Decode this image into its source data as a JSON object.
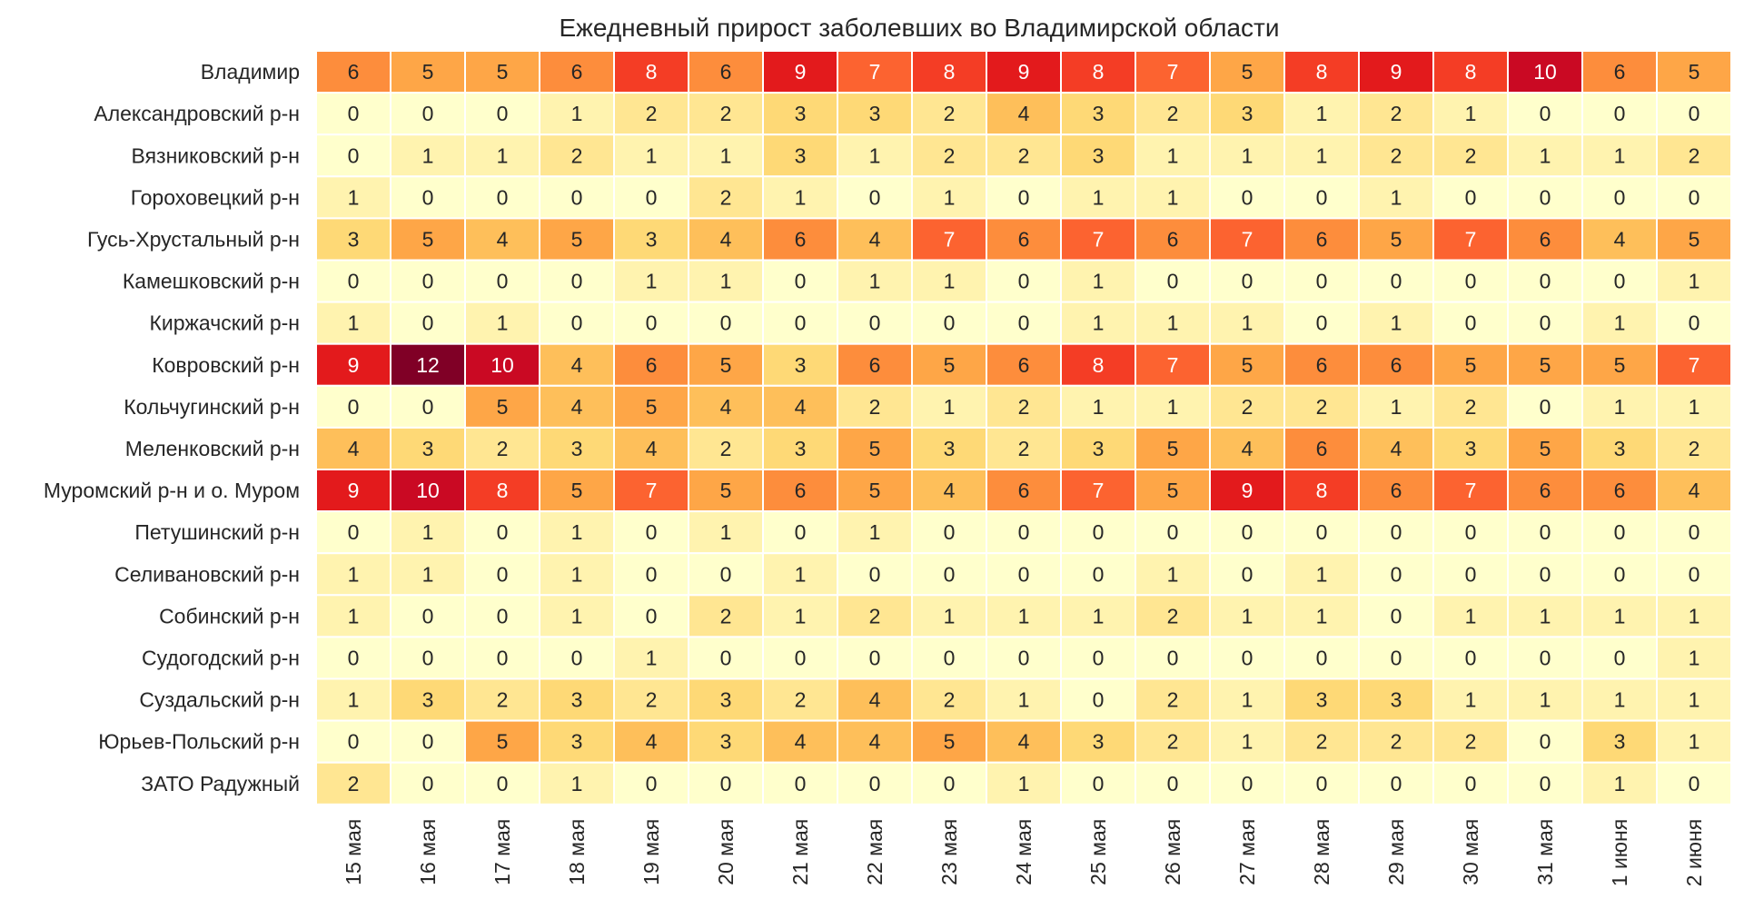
{
  "chart_data": {
    "type": "heatmap",
    "title": "Ежедневный прирост заболевших во Владимирской области",
    "xlabel": "",
    "ylabel": "",
    "columns": [
      "15 мая",
      "16 мая",
      "17 мая",
      "18 мая",
      "19 мая",
      "20 мая",
      "21 мая",
      "22 мая",
      "23 мая",
      "24 мая",
      "25 мая",
      "26 мая",
      "27 мая",
      "28 мая",
      "29 мая",
      "30 мая",
      "31 мая",
      "1 июня",
      "2 июня"
    ],
    "rows": [
      "Владимир",
      "Александровский р-н",
      "Вязниковский р-н",
      "Гороховецкий р-н",
      "Гусь-Хрустальный р-н",
      "Камешковский р-н",
      "Киржачский р-н",
      "Ковровский р-н",
      "Кольчугинский р-н",
      "Меленковский р-н",
      "Муромский р-н и о. Муром",
      "Петушинский р-н",
      "Селивановский р-н",
      "Собинский р-н",
      "Судогодский р-н",
      "Суздальский р-н",
      "Юрьев-Польский р-н",
      "ЗАТО Радужный"
    ],
    "values": [
      [
        6,
        5,
        5,
        6,
        8,
        6,
        9,
        7,
        8,
        9,
        8,
        7,
        5,
        8,
        9,
        8,
        10,
        6,
        5
      ],
      [
        0,
        0,
        0,
        1,
        2,
        2,
        3,
        3,
        2,
        4,
        3,
        2,
        3,
        1,
        2,
        1,
        0,
        0,
        0
      ],
      [
        0,
        1,
        1,
        2,
        1,
        1,
        3,
        1,
        2,
        2,
        3,
        1,
        1,
        1,
        2,
        2,
        1,
        1,
        2
      ],
      [
        1,
        0,
        0,
        0,
        0,
        2,
        1,
        0,
        1,
        0,
        1,
        1,
        0,
        0,
        1,
        0,
        0,
        0,
        0
      ],
      [
        3,
        5,
        4,
        5,
        3,
        4,
        6,
        4,
        7,
        6,
        7,
        6,
        7,
        6,
        5,
        7,
        6,
        4,
        5
      ],
      [
        0,
        0,
        0,
        0,
        1,
        1,
        0,
        1,
        1,
        0,
        1,
        0,
        0,
        0,
        0,
        0,
        0,
        0,
        1
      ],
      [
        1,
        0,
        1,
        0,
        0,
        0,
        0,
        0,
        0,
        0,
        1,
        1,
        1,
        0,
        1,
        0,
        0,
        1,
        0
      ],
      [
        9,
        12,
        10,
        4,
        6,
        5,
        3,
        6,
        5,
        6,
        8,
        7,
        5,
        6,
        6,
        5,
        5,
        5,
        7
      ],
      [
        0,
        0,
        5,
        4,
        5,
        4,
        4,
        2,
        1,
        2,
        1,
        1,
        2,
        2,
        1,
        2,
        0,
        1,
        1
      ],
      [
        4,
        3,
        2,
        3,
        4,
        2,
        3,
        5,
        3,
        2,
        3,
        5,
        4,
        6,
        4,
        3,
        5,
        3,
        2
      ],
      [
        9,
        10,
        8,
        5,
        7,
        5,
        6,
        5,
        4,
        6,
        7,
        5,
        9,
        8,
        6,
        7,
        6,
        6,
        4
      ],
      [
        0,
        1,
        0,
        1,
        0,
        1,
        0,
        1,
        0,
        0,
        0,
        0,
        0,
        0,
        0,
        0,
        0,
        0,
        0
      ],
      [
        1,
        1,
        0,
        1,
        0,
        0,
        1,
        0,
        0,
        0,
        0,
        1,
        0,
        1,
        0,
        0,
        0,
        0,
        0
      ],
      [
        1,
        0,
        0,
        1,
        0,
        2,
        1,
        2,
        1,
        1,
        1,
        2,
        1,
        1,
        0,
        1,
        1,
        1,
        1
      ],
      [
        0,
        0,
        0,
        0,
        1,
        0,
        0,
        0,
        0,
        0,
        0,
        0,
        0,
        0,
        0,
        0,
        0,
        0,
        1
      ],
      [
        1,
        3,
        2,
        3,
        2,
        3,
        2,
        4,
        2,
        1,
        0,
        2,
        1,
        3,
        3,
        1,
        1,
        1,
        1
      ],
      [
        0,
        0,
        5,
        3,
        4,
        3,
        4,
        4,
        5,
        4,
        3,
        2,
        1,
        2,
        2,
        2,
        0,
        3,
        1
      ],
      [
        2,
        0,
        0,
        1,
        0,
        0,
        0,
        0,
        0,
        1,
        0,
        0,
        0,
        0,
        0,
        0,
        0,
        1,
        0
      ]
    ],
    "vmin": 0,
    "vmax": 12,
    "colormap": "YlOrRd",
    "colorbar": false
  }
}
